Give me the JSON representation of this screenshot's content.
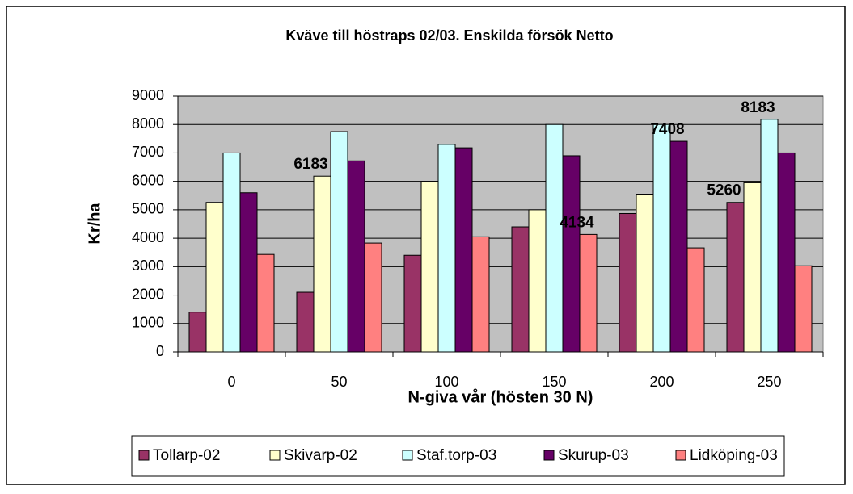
{
  "chart_data": {
    "type": "bar",
    "title": "Kväve till höstraps 02/03. Enskilda försök  Netto",
    "x_label": "N-giva vår (hösten 30 N)",
    "y_label": "Kr/ha",
    "categories": [
      "0",
      "50",
      "100",
      "150",
      "200",
      "250"
    ],
    "series": [
      {
        "name": "Tollarp-02",
        "color": "#993366",
        "values": [
          1400,
          2100,
          3400,
          4400,
          4870,
          5260
        ],
        "value_labels": [
          null,
          null,
          null,
          null,
          null,
          "5260"
        ]
      },
      {
        "name": "Skivarp-02",
        "color": "#ffffcc",
        "values": [
          5260,
          6183,
          6000,
          5000,
          5550,
          5950
        ],
        "value_labels": [
          null,
          "6183",
          null,
          null,
          null,
          null
        ]
      },
      {
        "name": "Staf.torp-03",
        "color": "#ccffff",
        "values": [
          7000,
          7750,
          7300,
          8000,
          8000,
          8183
        ],
        "value_labels": [
          null,
          null,
          null,
          null,
          null,
          "8183"
        ]
      },
      {
        "name": "Skurup-03",
        "color": "#660066",
        "values": [
          5600,
          6720,
          7180,
          6900,
          7408,
          7000
        ],
        "value_labels": [
          null,
          null,
          null,
          null,
          "7408",
          null
        ]
      },
      {
        "name": "Lidköping-03",
        "color": "#ff8080",
        "values": [
          3430,
          3830,
          4050,
          4134,
          3660,
          3030
        ],
        "value_labels": [
          null,
          null,
          null,
          "4134",
          null,
          null
        ]
      }
    ],
    "ylim": [
      0,
      9000
    ],
    "yticks": [
      0,
      1000,
      2000,
      3000,
      4000,
      5000,
      6000,
      7000,
      8000,
      9000
    ],
    "grid": true,
    "legend": "bottom"
  }
}
